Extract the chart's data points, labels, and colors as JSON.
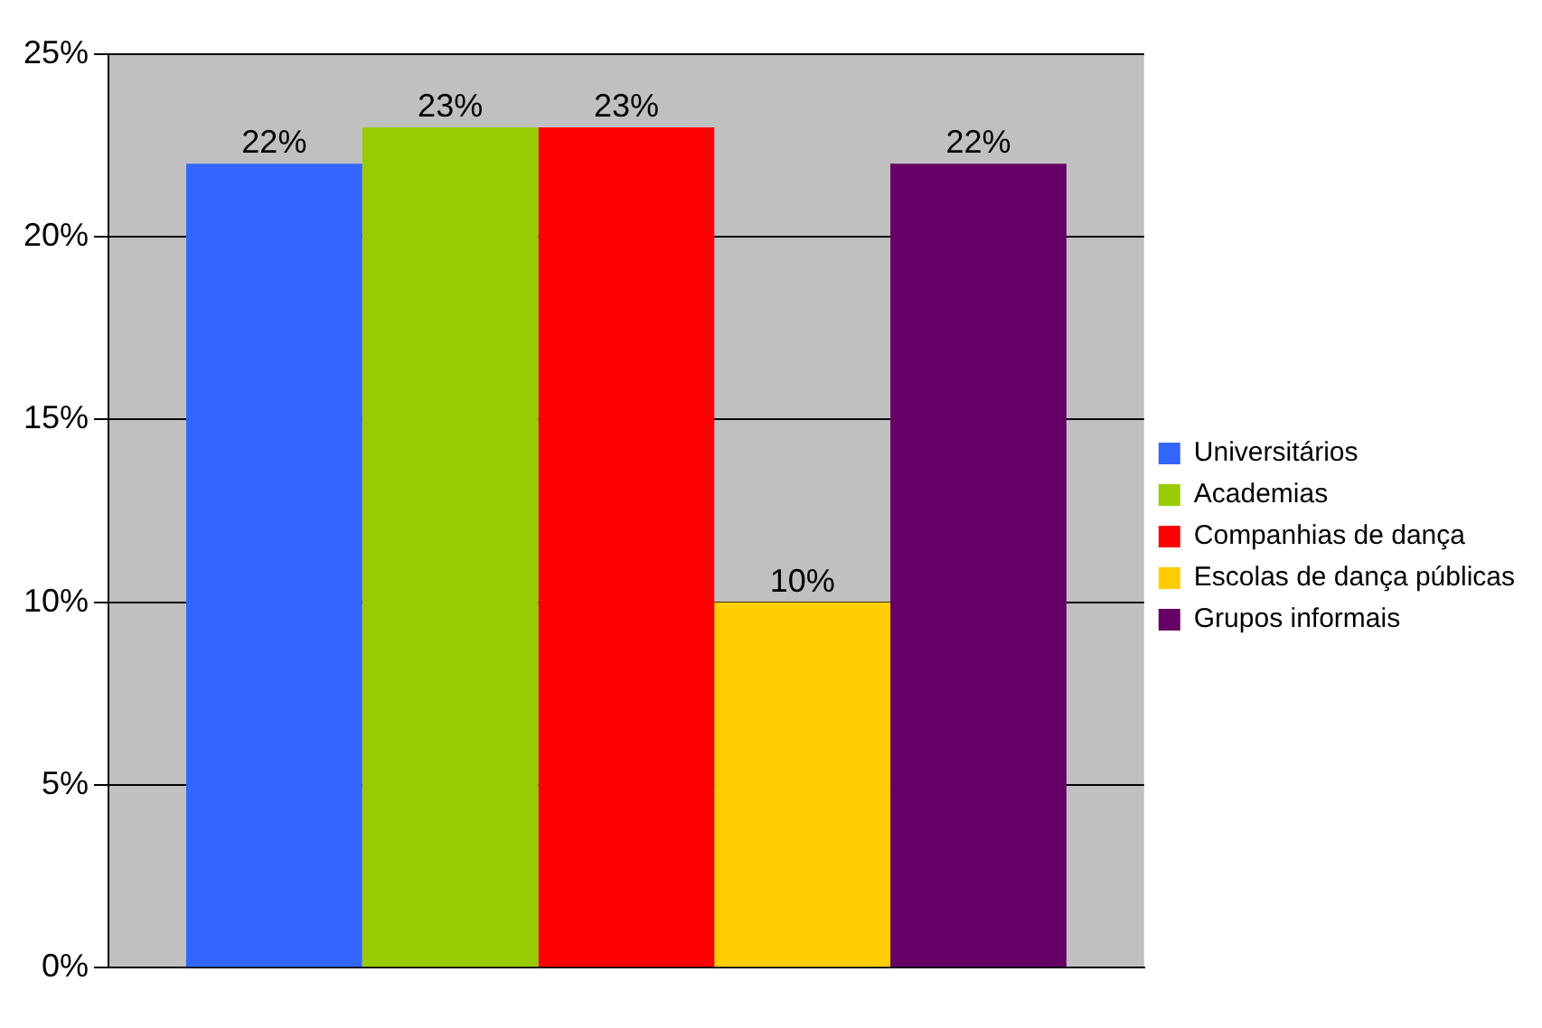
{
  "chart_data": {
    "type": "bar",
    "categories": [
      null
    ],
    "series": [
      {
        "name": "Universitários",
        "color": "#3366ff",
        "values": [
          22
        ],
        "value_labels": [
          "22%"
        ]
      },
      {
        "name": "Academias",
        "color": "#99cc00",
        "values": [
          23
        ],
        "value_labels": [
          "23%"
        ]
      },
      {
        "name": "Companhias de dança",
        "color": "#ff0000",
        "values": [
          23
        ],
        "value_labels": [
          "23%"
        ]
      },
      {
        "name": "Escolas de dança públicas",
        "color": "#ffcc00",
        "values": [
          10
        ],
        "value_labels": [
          "10%"
        ]
      },
      {
        "name": "Grupos informais",
        "color": "#660066",
        "values": [
          22
        ],
        "value_labels": [
          "22%"
        ]
      }
    ],
    "ylim": [
      0,
      25
    ],
    "yticks": [
      {
        "value": 0,
        "label": "0%"
      },
      {
        "value": 5,
        "label": "5%"
      },
      {
        "value": 10,
        "label": "10%"
      },
      {
        "value": 15,
        "label": "15%"
      },
      {
        "value": 20,
        "label": "20%"
      },
      {
        "value": 25,
        "label": "25%"
      }
    ],
    "grid": "y",
    "legend": "right"
  }
}
